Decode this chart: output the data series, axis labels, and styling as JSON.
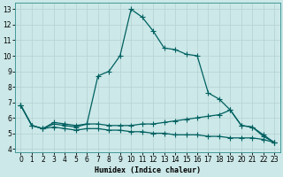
{
  "xlabel": "Humidex (Indice chaleur)",
  "ylabel": "",
  "background_color": "#cce8e8",
  "grid_color": "#b8d4d4",
  "line_color": "#006060",
  "xlim": [
    -0.5,
    23.5
  ],
  "ylim": [
    3.8,
    13.4
  ],
  "yticks": [
    4,
    5,
    6,
    7,
    8,
    9,
    10,
    11,
    12,
    13
  ],
  "xticks": [
    0,
    1,
    2,
    3,
    4,
    5,
    6,
    7,
    8,
    9,
    10,
    11,
    12,
    13,
    14,
    15,
    16,
    17,
    18,
    19,
    20,
    21,
    22,
    23
  ],
  "line1_x": [
    0,
    1,
    2,
    3,
    4,
    5,
    6,
    7,
    8,
    9,
    10,
    11,
    12,
    13,
    14,
    15,
    16,
    17,
    18,
    19,
    20,
    21,
    22,
    23
  ],
  "line1_y": [
    6.8,
    5.5,
    5.3,
    5.7,
    5.6,
    5.5,
    5.6,
    8.7,
    9.0,
    10.0,
    13.0,
    12.5,
    11.6,
    10.5,
    10.4,
    10.1,
    10.0,
    7.6,
    7.2,
    6.5,
    5.5,
    5.4,
    4.8,
    4.4
  ],
  "line2_x": [
    0,
    1,
    2,
    3,
    4,
    5,
    6,
    7,
    8,
    9,
    10,
    11,
    12,
    13,
    14,
    15,
    16,
    17,
    18,
    19,
    20,
    21,
    22,
    23
  ],
  "line2_y": [
    6.8,
    5.5,
    5.3,
    5.6,
    5.5,
    5.4,
    5.6,
    5.6,
    5.5,
    5.5,
    5.5,
    5.6,
    5.6,
    5.7,
    5.8,
    5.9,
    6.0,
    6.1,
    6.2,
    6.5,
    5.5,
    5.4,
    4.9,
    4.4
  ],
  "line3_x": [
    0,
    1,
    2,
    3,
    4,
    5,
    6,
    7,
    8,
    9,
    10,
    11,
    12,
    13,
    14,
    15,
    16,
    17,
    18,
    19,
    20,
    21,
    22,
    23
  ],
  "line3_y": [
    6.8,
    5.5,
    5.3,
    5.4,
    5.3,
    5.2,
    5.3,
    5.3,
    5.2,
    5.2,
    5.1,
    5.1,
    5.0,
    5.0,
    4.9,
    4.9,
    4.9,
    4.8,
    4.8,
    4.7,
    4.7,
    4.7,
    4.6,
    4.4
  ],
  "marker_size": 2.5,
  "line_width": 0.9,
  "tick_fontsize": 5.5,
  "xlabel_fontsize": 6.0
}
